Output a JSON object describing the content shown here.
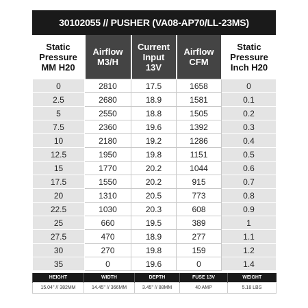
{
  "header": {
    "title": "30102055 // PUSHER (VA08-AP70/LL-23MS)"
  },
  "table": {
    "columns": [
      "Static\nPressure\nMM H20",
      "Airflow\nM3/H",
      "Current\nInput\n13V",
      "Airflow\nCFM",
      "Static\nPressure\nInch H20"
    ],
    "rows": [
      [
        0,
        2810,
        17.5,
        1658,
        0
      ],
      [
        2.5,
        2680,
        18.9,
        1581,
        0.1
      ],
      [
        5,
        2550,
        18.8,
        1505,
        0.2
      ],
      [
        7.5,
        2360,
        19.6,
        1392,
        0.3
      ],
      [
        10,
        2180,
        19.2,
        1286,
        0.4
      ],
      [
        12.5,
        1950,
        19.8,
        1151,
        0.5
      ],
      [
        15,
        1770,
        20.2,
        1044,
        0.6
      ],
      [
        17.5,
        1550,
        20.2,
        915,
        0.7
      ],
      [
        20,
        1310,
        20.5,
        773,
        0.8
      ],
      [
        22.5,
        1030,
        20.3,
        608,
        0.9
      ],
      [
        25,
        660,
        19.5,
        389,
        1
      ],
      [
        27.5,
        470,
        18.9,
        277,
        1.1
      ],
      [
        30,
        270,
        19.8,
        159,
        1.2
      ],
      [
        35,
        0,
        19.6,
        0,
        1.4
      ]
    ]
  },
  "specs": {
    "labels": [
      "HEIGHT",
      "WIDTH",
      "DEPTH",
      "FUSE 13V",
      "WEIGHT"
    ],
    "values": [
      "15.04\" // 382MM",
      "14.45\" // 366MM",
      "3.45\" // 88MM",
      "40 AMP",
      "5.18 LBS"
    ]
  }
}
